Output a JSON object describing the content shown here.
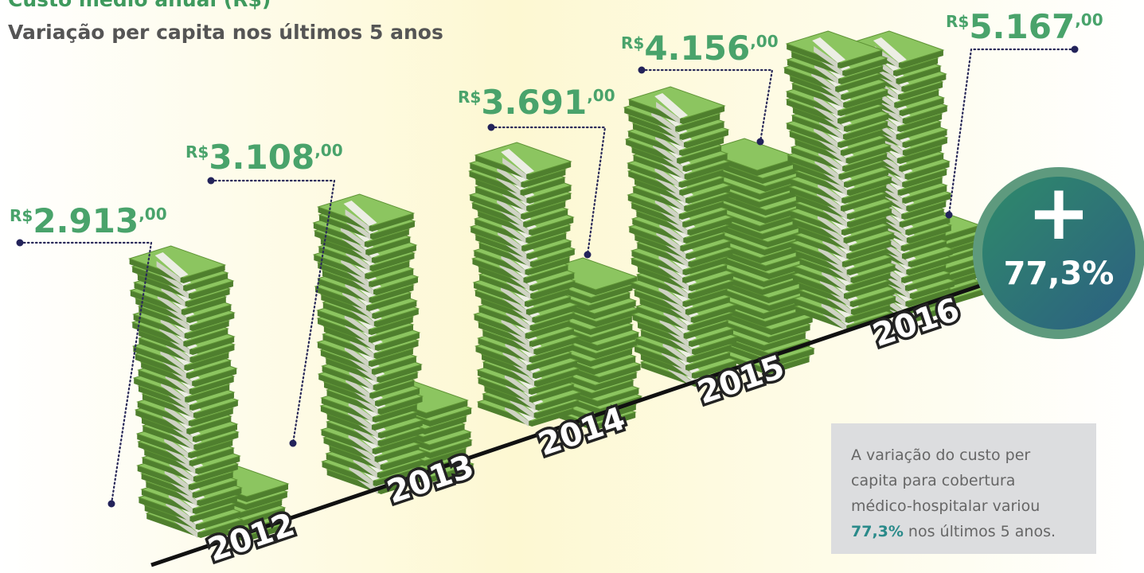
{
  "header": {
    "title": "Custo médio anual (R$)",
    "subtitle": "Variação per capita nos últimos 5 anos"
  },
  "years": [
    {
      "year": "2012",
      "currency": "R$",
      "amount": "2.913",
      "cents": ",00"
    },
    {
      "year": "2013",
      "currency": "R$",
      "amount": "3.108",
      "cents": ",00"
    },
    {
      "year": "2014",
      "currency": "R$",
      "amount": "3.691",
      "cents": ",00"
    },
    {
      "year": "2015",
      "currency": "R$",
      "amount": "4.156",
      "cents": ",00"
    },
    {
      "year": "2016",
      "currency": "R$",
      "amount": "5.167",
      "cents": ",00"
    }
  ],
  "badge": {
    "sign": "+",
    "value": "77,3%"
  },
  "note": {
    "lines": [
      "A variação do custo per",
      "capita para cobertura",
      "médico-hospitalar variou"
    ],
    "highlight": "77,3%",
    "tail": "nos últimos 5 anos."
  }
}
